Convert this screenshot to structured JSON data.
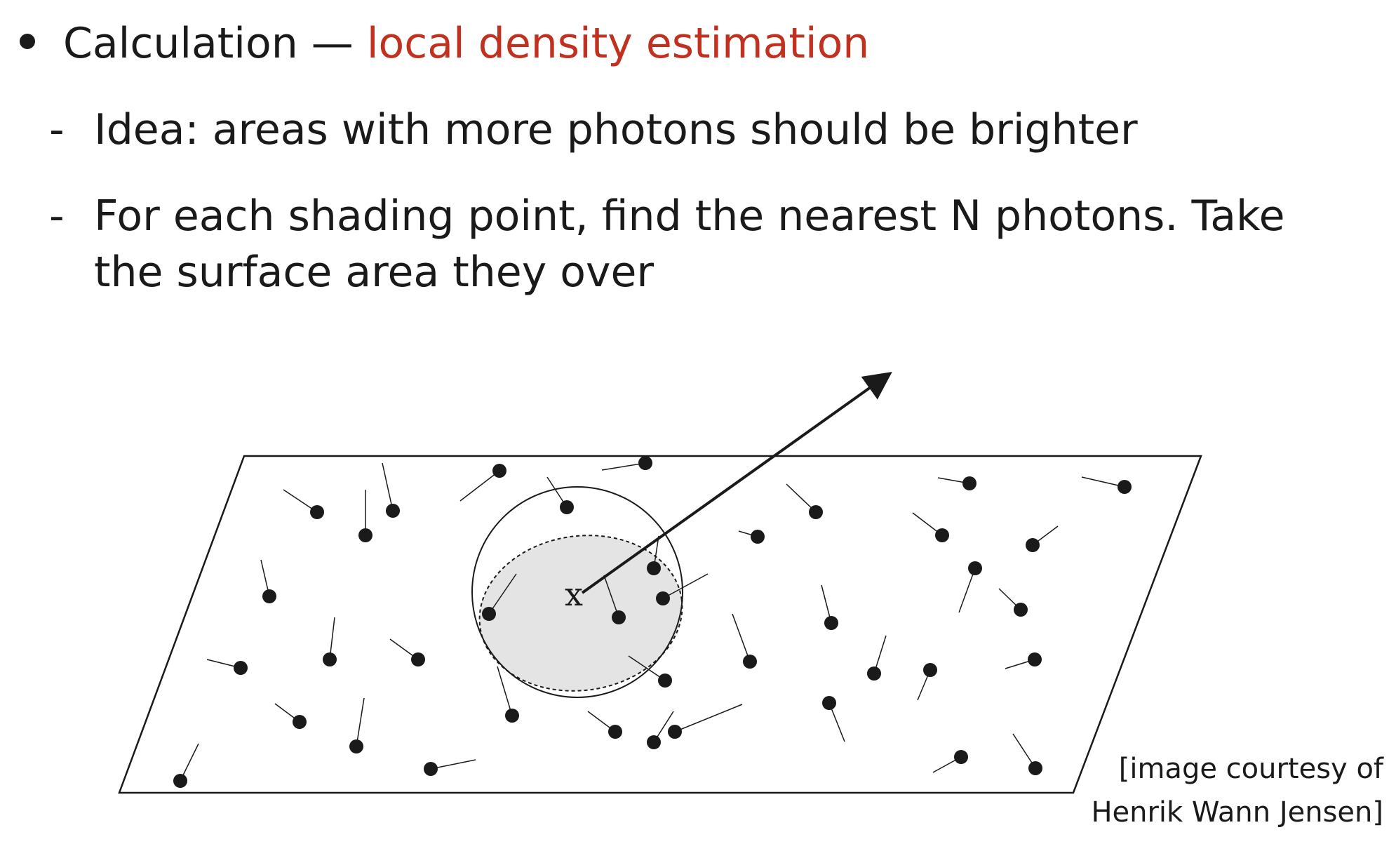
{
  "bullet": {
    "prefix": "Calculation — ",
    "highlight": "local density estimation"
  },
  "sub_bullets": [
    {
      "dash": "-",
      "text": "Idea: areas with more photons should be brighter"
    },
    {
      "dash": "-",
      "line1": "For each shading point, find the nearest N photons. Take",
      "line2": "the surface area they over"
    }
  ],
  "diagram": {
    "point_label": "x",
    "colors": {
      "stroke": "#1a1a1a",
      "disc_fill": "#e4e4e4",
      "accent": "#c0311f"
    }
  },
  "credit": {
    "line1": "[image courtesy of",
    "line2": "Henrik Wann Jensen]"
  }
}
